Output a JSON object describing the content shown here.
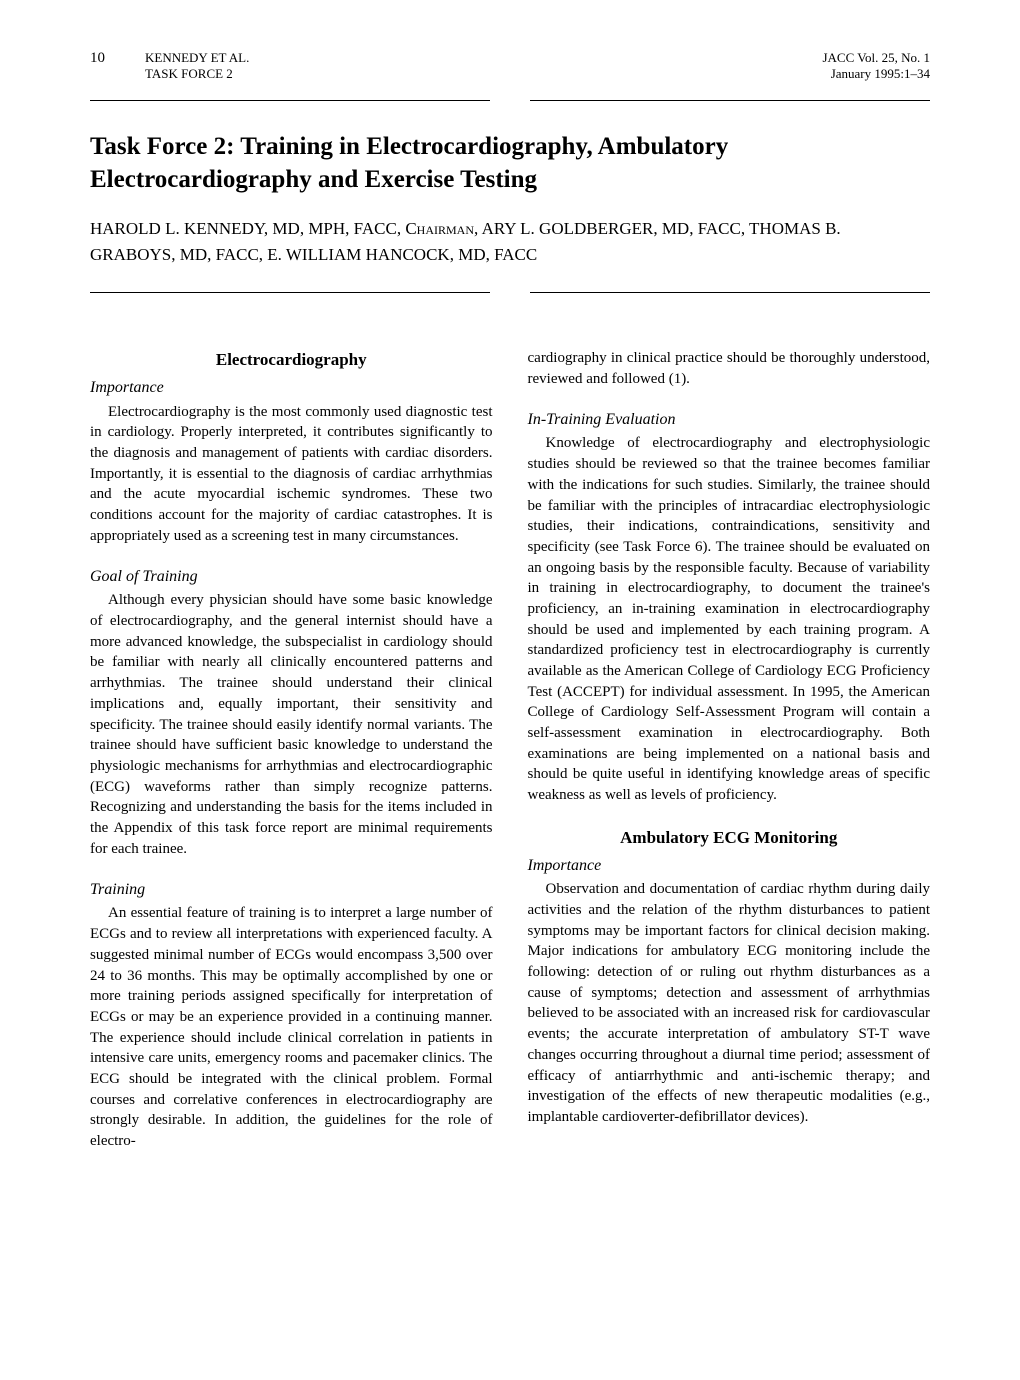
{
  "header": {
    "page_number": "10",
    "left_line1": "KENNEDY ET AL.",
    "left_line2": "TASK FORCE 2",
    "right_line1": "JACC Vol. 25, No. 1",
    "right_line2": "January 1995:1–34"
  },
  "title": "Task Force 2: Training in Electrocardiography, Ambulatory Electrocardiography and Exercise Testing",
  "authors_pre1": "HAROLD L. KENNEDY, MD, MPH, FACC, ",
  "authors_chairman": "Chairman",
  "authors_post1": ", ARY L. GOLDBERGER, MD, FACC, THOMAS B. GRABOYS, MD, FACC, E. WILLIAM HANCOCK, MD, FACC",
  "col1": {
    "h1": "Electrocardiography",
    "s1": "Importance",
    "p1": "Electrocardiography is the most commonly used diagnostic test in cardiology. Properly interpreted, it contributes significantly to the diagnosis and management of patients with cardiac disorders. Importantly, it is essential to the diagnosis of cardiac arrhythmias and the acute myocardial ischemic syndromes. These two conditions account for the majority of cardiac catastrophes. It is appropriately used as a screening test in many circumstances.",
    "s2": "Goal of Training",
    "p2": "Although every physician should have some basic knowledge of electrocardiography, and the general internist should have a more advanced knowledge, the subspecialist in cardiology should be familiar with nearly all clinically encountered patterns and arrhythmias. The trainee should understand their clinical implications and, equally important, their sensitivity and specificity. The trainee should easily identify normal variants. The trainee should have sufficient basic knowledge to understand the physiologic mechanisms for arrhythmias and electrocardiographic (ECG) waveforms rather than simply recognize patterns. Recognizing and understanding the basis for the items included in the Appendix of this task force report are minimal requirements for each trainee.",
    "s3": "Training",
    "p3": "An essential feature of training is to interpret a large number of ECGs and to review all interpretations with experienced faculty. A suggested minimal number of ECGs would encompass 3,500 over 24 to 36 months. This may be optimally accomplished by one or more training periods assigned specifically for interpretation of ECGs or may be an experience provided in a continuing manner. The experience should include clinical correlation in patients in intensive care units, emergency rooms and pacemaker clinics. The ECG should be integrated with the clinical problem. Formal courses and correlative conferences in electrocardiography are strongly desirable. In addition, the guidelines for the role of electro-"
  },
  "col2": {
    "p0": "cardiography in clinical practice should be thoroughly understood, reviewed and followed (1).",
    "s1": "In-Training Evaluation",
    "p1": "Knowledge of electrocardiography and electrophysiologic studies should be reviewed so that the trainee becomes familiar with the indications for such studies. Similarly, the trainee should be familiar with the principles of intracardiac electrophysiologic studies, their indications, contraindications, sensitivity and specificity (see Task Force 6). The trainee should be evaluated on an ongoing basis by the responsible faculty. Because of variability in training in electrocardiography, to document the trainee's proficiency, an in-training examination in electrocardiography should be used and implemented by each training program. A standardized proficiency test in electrocardiography is currently available as the American College of Cardiology ECG Proficiency Test (ACCEPT) for individual assessment. In 1995, the American College of Cardiology Self-Assessment Program will contain a self-assessment examination in electrocardiography. Both examinations are being implemented on a national basis and should be quite useful in identifying knowledge areas of specific weakness as well as levels of proficiency.",
    "h2": "Ambulatory ECG Monitoring",
    "s2": "Importance",
    "p2": "Observation and documentation of cardiac rhythm during daily activities and the relation of the rhythm disturbances to patient symptoms may be important factors for clinical decision making. Major indications for ambulatory ECG monitoring include the following: detection of or ruling out rhythm disturbances as a cause of symptoms; detection and assessment of arrhythmias believed to be associated with an increased risk for cardiovascular events; the accurate interpretation of ambulatory ST-T wave changes occurring throughout a diurnal time period; assessment of efficacy of antiarrhythmic and anti-ischemic therapy; and investigation of the effects of new therapeutic modalities (e.g., implantable cardioverter-defibrillator devices)."
  }
}
